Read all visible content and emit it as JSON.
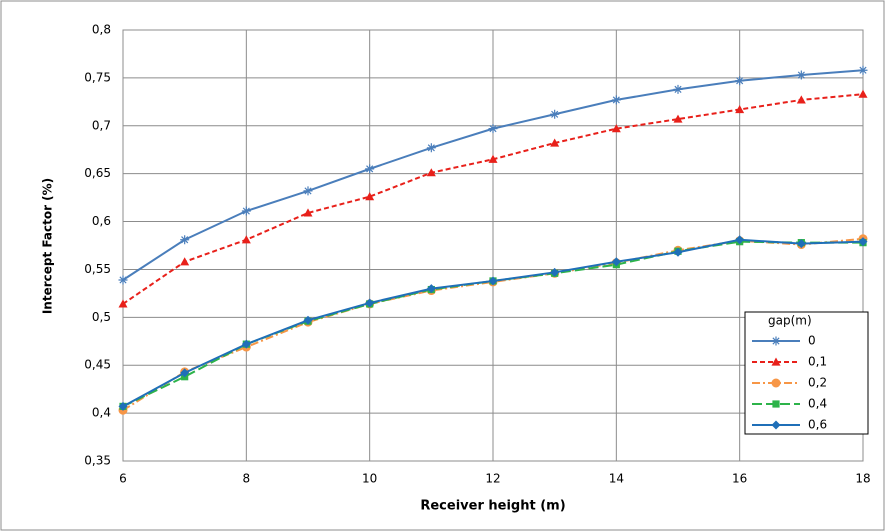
{
  "chart_data": {
    "type": "line",
    "x_label": "Receiver height (m)",
    "y_label": "Intercept Factor (%)",
    "x": [
      6,
      7,
      8,
      9,
      10,
      11,
      12,
      13,
      14,
      15,
      16,
      17,
      18
    ],
    "xlim": [
      6,
      18
    ],
    "xticks": [
      6,
      8,
      10,
      12,
      14,
      16,
      18
    ],
    "ylim": [
      0.35,
      0.8
    ],
    "yticks": [
      {
        "value": 0.35,
        "label": "0,35"
      },
      {
        "value": 0.4,
        "label": "0,4"
      },
      {
        "value": 0.45,
        "label": "0,45"
      },
      {
        "value": 0.5,
        "label": "0,5"
      },
      {
        "value": 0.55,
        "label": "0,55"
      },
      {
        "value": 0.6,
        "label": "0,6"
      },
      {
        "value": 0.65,
        "label": "0,65"
      },
      {
        "value": 0.7,
        "label": "0,7"
      },
      {
        "value": 0.75,
        "label": "0,75"
      },
      {
        "value": 0.8,
        "label": "0,8"
      }
    ],
    "grid": true,
    "legend_title": "gap(m)",
    "legend_position": "lower right",
    "series": [
      {
        "name": "0",
        "color": "#4a7ebb",
        "marker": "star",
        "dash": "solid",
        "values": [
          0.539,
          0.581,
          0.611,
          0.632,
          0.655,
          0.677,
          0.697,
          0.712,
          0.727,
          0.738,
          0.747,
          0.753,
          0.758
        ]
      },
      {
        "name": "0,1",
        "color": "#e8201a",
        "marker": "triangle",
        "dash": "dashed",
        "values": [
          0.514,
          0.558,
          0.581,
          0.609,
          0.626,
          0.651,
          0.665,
          0.682,
          0.697,
          0.707,
          0.717,
          0.727,
          0.733
        ]
      },
      {
        "name": "0,2",
        "color": "#f79646",
        "marker": "circle",
        "dash": "dashdot",
        "values": [
          0.403,
          0.443,
          0.469,
          0.495,
          0.514,
          0.528,
          0.537,
          0.546,
          0.557,
          0.57,
          0.58,
          0.576,
          0.582
        ]
      },
      {
        "name": "0,4",
        "color": "#2db34a",
        "marker": "square",
        "dash": "longdash",
        "values": [
          0.407,
          0.438,
          0.472,
          0.496,
          0.514,
          0.529,
          0.538,
          0.546,
          0.555,
          0.569,
          0.579,
          0.578,
          0.578
        ]
      },
      {
        "name": "0,6",
        "color": "#1f6fb8",
        "marker": "diamond",
        "dash": "solid",
        "values": [
          0.407,
          0.442,
          0.472,
          0.497,
          0.515,
          0.53,
          0.538,
          0.547,
          0.558,
          0.568,
          0.581,
          0.577,
          0.579
        ]
      }
    ]
  }
}
